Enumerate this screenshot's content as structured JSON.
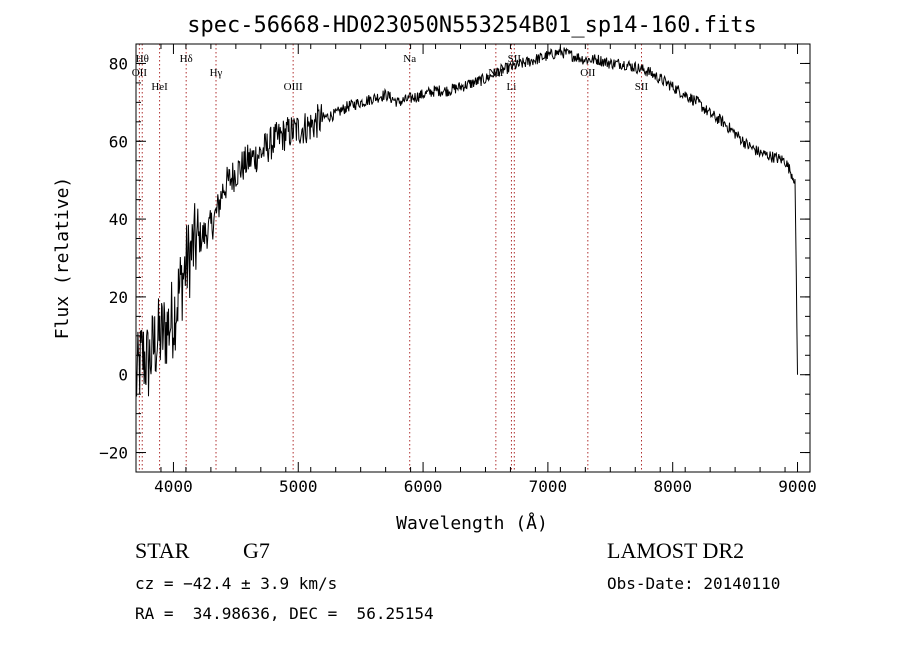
{
  "chart_data": {
    "type": "line",
    "title": "spec-56668-HD023050N553254B01_sp14-160.fits",
    "xlabel": "Wavelength (Å)",
    "ylabel": "Flux (relative)",
    "xlim": [
      3700,
      9100
    ],
    "ylim": [
      -25,
      85
    ],
    "x_ticks": [
      4000,
      5000,
      6000,
      7000,
      8000,
      9000
    ],
    "y_ticks": [
      -20,
      0,
      20,
      40,
      60,
      80
    ],
    "grid": false,
    "series": [
      {
        "color": "#000000",
        "x": [
          3700,
          3750,
          3800,
          3850,
          3900,
          3950,
          4000,
          4050,
          4100,
          4150,
          4200,
          4250,
          4300,
          4350,
          4400,
          4450,
          4500,
          4600,
          4700,
          4800,
          4900,
          5000,
          5100,
          5200,
          5300,
          5400,
          5500,
          5600,
          5700,
          5800,
          5900,
          6000,
          6100,
          6200,
          6300,
          6400,
          6500,
          6600,
          6700,
          6800,
          6900,
          7000,
          7100,
          7200,
          7300,
          7400,
          7500,
          7600,
          7700,
          7800,
          7900,
          8000,
          8100,
          8200,
          8300,
          8400,
          8500,
          8600,
          8700,
          8800,
          8900,
          8980,
          9000
        ],
        "y": [
          -2,
          5,
          3,
          8,
          10,
          12,
          15,
          22,
          28,
          32,
          35,
          36,
          38,
          42,
          48,
          50,
          52,
          55,
          57,
          60,
          62,
          63,
          64,
          66,
          67,
          69,
          70,
          71,
          72,
          70,
          71,
          72,
          73,
          73,
          74,
          75,
          76,
          78,
          79,
          80,
          81,
          82,
          83,
          82,
          81,
          81,
          80,
          80,
          79,
          78,
          76,
          74,
          72,
          70,
          67,
          65,
          62,
          59,
          57,
          56,
          55,
          50,
          0
        ]
      }
    ],
    "lines": [
      {
        "x": 3750,
        "label": "Hθ"
      },
      {
        "x": 3727,
        "label": "OII"
      },
      {
        "x": 3889,
        "label": "HeI"
      },
      {
        "x": 4102,
        "label": "Hδ"
      },
      {
        "x": 4341,
        "label": "Hγ"
      },
      {
        "x": 4959,
        "label": "OIII"
      },
      {
        "x": 5893,
        "label": "Na"
      },
      {
        "x": 6583,
        "label": "NII"
      },
      {
        "x": 6708,
        "label": "Li"
      },
      {
        "x": 6731,
        "label": "SII"
      },
      {
        "x": 7320,
        "label": "OII"
      },
      {
        "x": 7750,
        "label": "SII"
      }
    ]
  },
  "info": {
    "object_class": "STAR",
    "subclass": "G7",
    "survey": "LAMOST DR2",
    "cz": "cz = −42.4 ± 3.9 km/s",
    "obs_date": "Obs-Date: 20140110",
    "coords": "RA =  34.98636, DEC =  56.25154"
  }
}
